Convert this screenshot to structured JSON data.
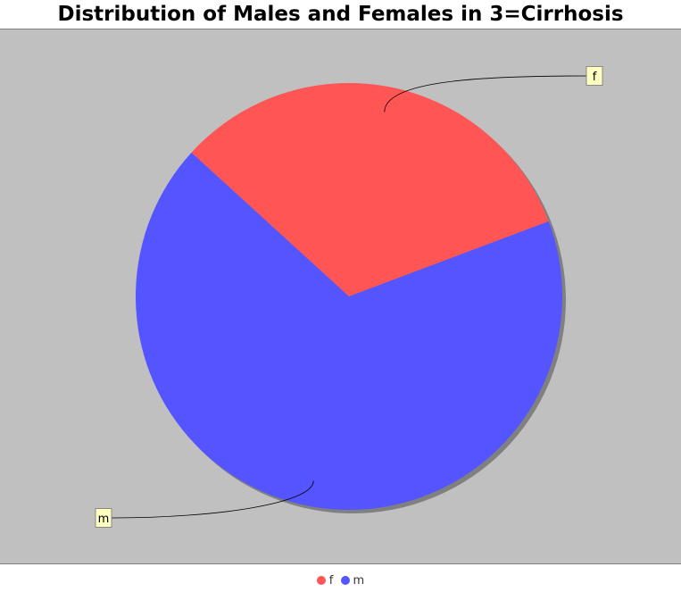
{
  "chart_data": {
    "type": "pie",
    "title": "Distribution of Males and Females in 3=Cirrhosis",
    "categories": [
      "f",
      "m"
    ],
    "values": [
      32.5,
      67.5
    ],
    "colors": [
      "#ff5555",
      "#5555ff"
    ],
    "legend_position": "bottom",
    "background": "#c0c0c0"
  }
}
